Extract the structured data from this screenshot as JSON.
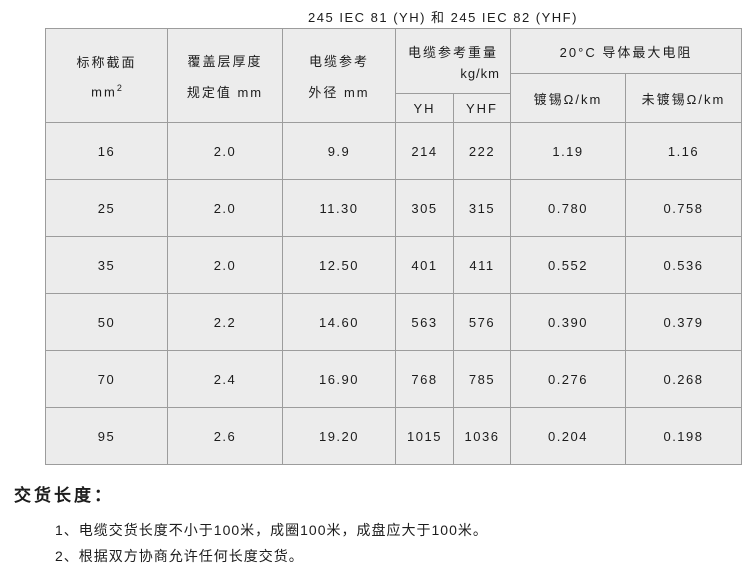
{
  "title": "245  IEC 81 (YH) 和 245  IEC 82 (YHF)",
  "table": {
    "header": {
      "col1_line1": "标称截面",
      "col1_line2": "mm",
      "col1_sup": "2",
      "col2_line1": "覆盖层厚度",
      "col2_line2": "规定值 mm",
      "col3_line1": "电缆参考",
      "col3_line2": "外径 mm",
      "weight_group_label": "电缆参考重量",
      "weight_group_unit": "kg/km",
      "weight_sub": [
        "YH",
        "YHF"
      ],
      "resistance_group_label": "20°C 导体最大电阻",
      "resistance_sub": [
        "镀锡Ω/km",
        "未镀锡Ω/km"
      ]
    },
    "rows": [
      [
        "16",
        "2.0",
        "9.9",
        "214",
        "222",
        "1.19",
        "1.16"
      ],
      [
        "25",
        "2.0",
        "11.30",
        "305",
        "315",
        "0.780",
        "0.758"
      ],
      [
        "35",
        "2.0",
        "12.50",
        "401",
        "411",
        "0.552",
        "0.536"
      ],
      [
        "50",
        "2.2",
        "14.60",
        "563",
        "576",
        "0.390",
        "0.379"
      ],
      [
        "70",
        "2.4",
        "16.90",
        "768",
        "785",
        "0.276",
        "0.268"
      ],
      [
        "95",
        "2.6",
        "19.20",
        "1015",
        "1036",
        "0.204",
        "0.198"
      ]
    ]
  },
  "footer": {
    "heading": "交货长度：",
    "items": [
      "1、电缆交货长度不小于100米，成圈100米，成盘应大于100米。",
      "2、根据双方协商允许任何长度交货。"
    ]
  },
  "colors": {
    "cell_background": "#ececec",
    "border": "#9c9c9c",
    "text": "#1c1c1c",
    "page_background": "#ffffff"
  }
}
